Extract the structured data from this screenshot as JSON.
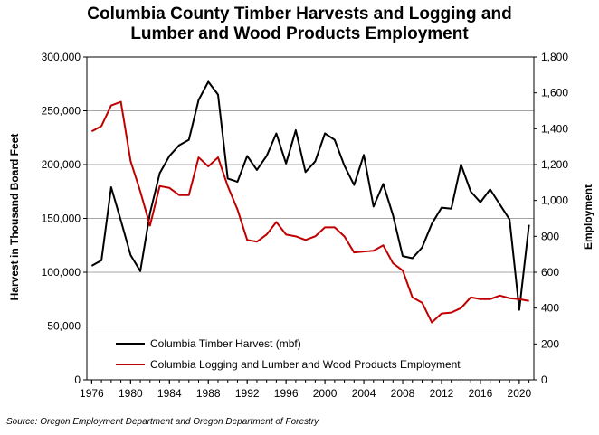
{
  "chart_data": {
    "type": "line",
    "title_line1": "Columbia County Timber Harvests and Logging and",
    "title_line2": "Lumber and Wood Products Employment",
    "ylabel": "Harvest in Thousand Board Feet",
    "y2label": "Employment",
    "ylim": [
      0,
      300000
    ],
    "y2lim": [
      0,
      1800
    ],
    "xlim": [
      1975.5,
      2021.5
    ],
    "grid": true,
    "legend_position": "bottom-left inside plot",
    "x_ticks": [
      1976,
      1980,
      1984,
      1988,
      1992,
      1996,
      2000,
      2004,
      2008,
      2012,
      2016,
      2020
    ],
    "x_tick_labels": [
      "1976",
      "1980",
      "1984",
      "1988",
      "1992",
      "1996",
      "2000",
      "2004",
      "2008",
      "2012",
      "2016",
      "2020"
    ],
    "y_ticks": [
      0,
      50000,
      100000,
      150000,
      200000,
      250000,
      300000
    ],
    "y_tick_labels": [
      "0",
      "50,000",
      "100,000",
      "150,000",
      "200,000",
      "250,000",
      "300,000"
    ],
    "y2_ticks": [
      0,
      200,
      400,
      600,
      800,
      1000,
      1200,
      1400,
      1600,
      1800
    ],
    "y2_tick_labels": [
      "0",
      "200",
      "400",
      "600",
      "800",
      "1,000",
      "1,200",
      "1,400",
      "1,600",
      "1,800"
    ],
    "x": [
      1976,
      1977,
      1978,
      1979,
      1980,
      1981,
      1982,
      1983,
      1984,
      1985,
      1986,
      1987,
      1988,
      1989,
      1990,
      1991,
      1992,
      1993,
      1994,
      1995,
      1996,
      1997,
      1998,
      1999,
      2000,
      2001,
      2002,
      2003,
      2004,
      2005,
      2006,
      2007,
      2008,
      2009,
      2010,
      2011,
      2012,
      2013,
      2014,
      2015,
      2016,
      2017,
      2018,
      2019,
      2020,
      2021
    ],
    "series": [
      {
        "name": "Columbia Timber Harvest (mbf)",
        "axis": "left",
        "color": "#000000",
        "values": [
          106000,
          111000,
          179000,
          148000,
          116000,
          101000,
          155000,
          192000,
          208000,
          218000,
          223000,
          260000,
          277000,
          265000,
          187000,
          184000,
          208000,
          195000,
          208000,
          229000,
          201000,
          232000,
          193000,
          203000,
          229000,
          223000,
          199000,
          181000,
          209000,
          161000,
          182000,
          153000,
          115000,
          113000,
          123000,
          145000,
          160000,
          159000,
          200000,
          175000,
          165000,
          177000,
          163000,
          149000,
          65000,
          144000
        ]
      },
      {
        "name": "Columbia Logging and Lumber and Wood Products Employment",
        "axis": "right",
        "color": "#c00000",
        "values": [
          1385,
          1415,
          1530,
          1550,
          1220,
          1050,
          860,
          1080,
          1070,
          1030,
          1030,
          1240,
          1190,
          1240,
          1080,
          950,
          780,
          770,
          810,
          880,
          810,
          800,
          780,
          800,
          850,
          850,
          800,
          710,
          715,
          720,
          750,
          650,
          610,
          460,
          430,
          320,
          370,
          375,
          400,
          460,
          450,
          450,
          470,
          455,
          450,
          440
        ]
      }
    ],
    "source": "Source: Oregon Employment Department and Oregon Department of Forestry"
  }
}
